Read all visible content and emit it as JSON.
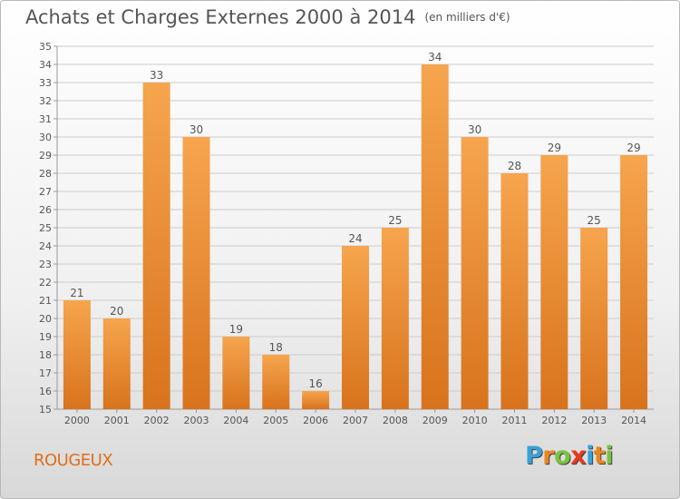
{
  "title": "Achats et Charges Externes 2000 à 2014",
  "unit": "(en milliers d'€)",
  "commune": "ROUGEUX",
  "brand": {
    "letters": [
      "P",
      "r",
      "o",
      "x",
      "i",
      "t",
      "i"
    ],
    "colors": [
      "#3aa0d8",
      "#e8861e",
      "#7cc242",
      "#e83a1e",
      "#3aa0d8",
      "#e8861e",
      "#7cc242"
    ]
  },
  "colors": {
    "bar_top": "#f6a54e",
    "bar_bottom": "#d8731c",
    "grid": "#cccccc",
    "text": "#555555"
  },
  "chart_data": {
    "type": "bar",
    "categories": [
      "2000",
      "2001",
      "2002",
      "2003",
      "2004",
      "2005",
      "2006",
      "2007",
      "2008",
      "2009",
      "2010",
      "2011",
      "2012",
      "2013",
      "2014"
    ],
    "values": [
      21,
      20,
      33,
      30,
      19,
      18,
      16,
      24,
      25,
      34,
      30,
      28,
      29,
      25,
      29
    ],
    "ylim": [
      15,
      35
    ],
    "yticks": [
      15,
      16,
      17,
      18,
      19,
      20,
      21,
      22,
      23,
      24,
      25,
      26,
      27,
      28,
      29,
      30,
      31,
      32,
      33,
      34,
      35
    ],
    "grid": true,
    "legend": "none"
  }
}
